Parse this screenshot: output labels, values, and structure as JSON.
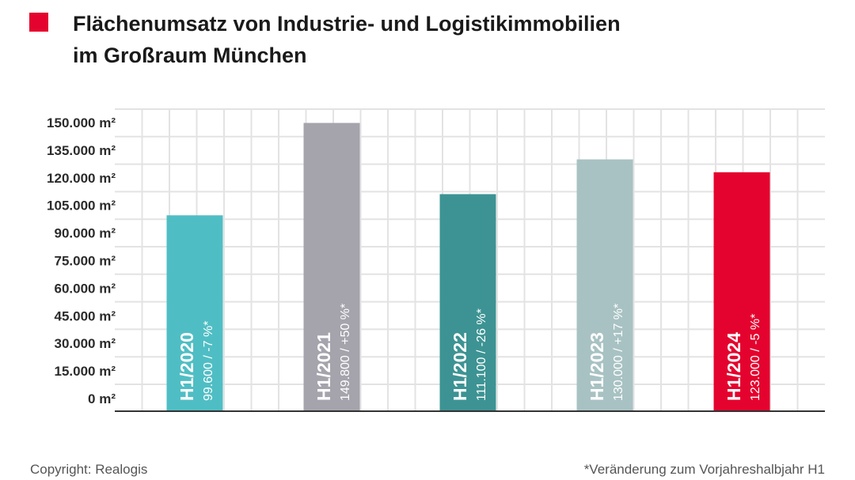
{
  "header": {
    "title_line1": "Flächenumsatz von Industrie- und Logistikimmobilien",
    "title_line2": "im Großraum München",
    "marker_color": "#e4032e"
  },
  "footer": {
    "copyright": "Copyright: Realogis",
    "note": "*Veränderung zum Vorjahreshalbjahr H1"
  },
  "chart_data": {
    "type": "bar",
    "title": "Flächenumsatz von Industrie- und Logistikimmobilien im Großraum München",
    "categories": [
      "H1/2020",
      "H1/2021",
      "H1/2022",
      "H1/2023",
      "H1/2024"
    ],
    "values": [
      99600,
      149800,
      111100,
      130000,
      123000
    ],
    "changes": [
      "-7 %*",
      "+50 %*",
      "-26 %*",
      "+17 %*",
      "-5 %*"
    ],
    "bar_value_labels": [
      "99.600 / -7 %*",
      "149.800 / +50 %*",
      "111.100 / -26 %*",
      "130.000 / +17 %*",
      "123.000 / -5 %*"
    ],
    "colors": [
      "#4fbec4",
      "#a5a4ad",
      "#3d9393",
      "#a8c2c3",
      "#e4032e"
    ],
    "y_ticks": [
      "0 m²",
      "15.000 m²",
      "30.000 m²",
      "45.000 m²",
      "60.000 m²",
      "75.000 m²",
      "90.000 m²",
      "105.000 m²",
      "120.000 m²",
      "135.000 m²",
      "150.000 m²"
    ],
    "ylim": [
      0,
      150000
    ],
    "grid": true,
    "legend": "none"
  }
}
